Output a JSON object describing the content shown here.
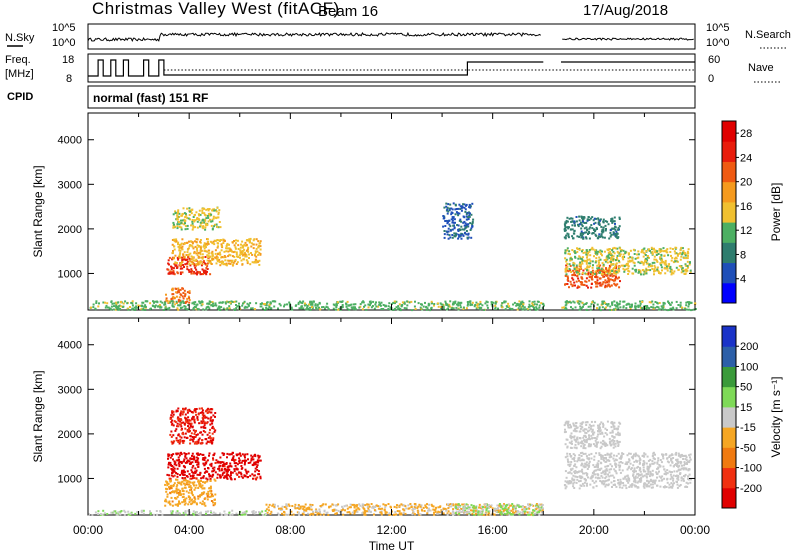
{
  "header": {
    "station": "Christmas Valley West (fitACF)",
    "beam": "Beam 16",
    "date": "17/Aug/2018"
  },
  "info_panels": {
    "nsky_label": "N.Sky",
    "nsky_ticks": [
      "10^5",
      "10^0"
    ],
    "nsearch_label": "N.Search",
    "nsearch_ticks": [
      "10^5",
      "10^0"
    ],
    "freq_label_line1": "Freq.",
    "freq_label_line2": "[MHz]",
    "freq_ticks": [
      "18",
      "8"
    ],
    "nave_label": "Nave",
    "nave_ticks": [
      "60",
      "0"
    ],
    "cpid_label": "CPID",
    "cpid_value": "normal (fast) 151 RF"
  },
  "colors": {
    "power_scale": [
      "#0000ff",
      "#1f4fb8",
      "#2e7d6e",
      "#4caf62",
      "#f0c030",
      "#f59a1e",
      "#ef5a12",
      "#e81c0c",
      "#e00000"
    ],
    "velocity_scale": [
      "#e00000",
      "#f03010",
      "#f07a10",
      "#f5a623",
      "#c9c9c9",
      "#7ed957",
      "#3a9a3a",
      "#2c5fa8",
      "#1a33c8"
    ],
    "ground_scatter": "#c8c8c8"
  },
  "chart_data": [
    {
      "type": "heatmap",
      "name": "power-panel",
      "xlabel": "",
      "ylabel": "Slant Range [km]",
      "x_range_hours": [
        0,
        24
      ],
      "ylim": [
        180,
        4600
      ],
      "y_ticks": [
        1000,
        2000,
        3000,
        4000
      ],
      "colorbar": {
        "label": "Power [dB]",
        "ticks": [
          4,
          8,
          12,
          16,
          20,
          24,
          28
        ],
        "range": [
          0,
          30
        ]
      },
      "regions": [
        {
          "t0": 3.1,
          "t1": 4.8,
          "r0": 1000,
          "r1": 1400,
          "value": 24
        },
        {
          "t0": 3.3,
          "t1": 6.8,
          "r0": 1200,
          "r1": 1800,
          "value": 16
        },
        {
          "t0": 3.3,
          "t1": 5.2,
          "r0": 2000,
          "r1": 2500,
          "value": 14
        },
        {
          "t0": 3.0,
          "t1": 4.0,
          "r0": 350,
          "r1": 700,
          "value": 20
        },
        {
          "t0": 18.8,
          "t1": 21.0,
          "r0": 700,
          "r1": 1200,
          "value": 22
        },
        {
          "t0": 18.8,
          "t1": 23.8,
          "r0": 1000,
          "r1": 1600,
          "value": 14
        },
        {
          "t0": 18.8,
          "t1": 21.0,
          "r0": 1800,
          "r1": 2300,
          "value": 8
        },
        {
          "t0": 0.0,
          "t1": 18.0,
          "r0": 200,
          "r1": 400,
          "value": 12
        },
        {
          "t0": 18.7,
          "t1": 24.0,
          "r0": 200,
          "r1": 400,
          "value": 12
        },
        {
          "t0": 14.0,
          "t1": 15.2,
          "r0": 1800,
          "r1": 2600,
          "value": 6
        }
      ]
    },
    {
      "type": "heatmap",
      "name": "velocity-panel",
      "xlabel": "Time UT",
      "ylabel": "Slant Range [km]",
      "x_range_hours": [
        0,
        24
      ],
      "x_ticks": [
        "00:00",
        "04:00",
        "08:00",
        "12:00",
        "16:00",
        "20:00",
        "00:00"
      ],
      "ylim": [
        180,
        4600
      ],
      "y_ticks": [
        1000,
        2000,
        3000,
        4000
      ],
      "colorbar": {
        "label": "Velocity [m s⁻¹]",
        "ticks": [
          200,
          100,
          50,
          15,
          -15,
          -50,
          -100,
          -200
        ],
        "range": [
          -250,
          250
        ]
      },
      "regions": [
        {
          "t0": 3.1,
          "t1": 6.8,
          "r0": 1000,
          "r1": 1600,
          "value": -220
        },
        {
          "t0": 3.0,
          "t1": 5.0,
          "r0": 400,
          "r1": 1000,
          "value": -60
        },
        {
          "t0": 3.2,
          "t1": 5.0,
          "r0": 1800,
          "r1": 2600,
          "value": -200
        },
        {
          "t0": 18.8,
          "t1": 23.8,
          "r0": 800,
          "r1": 1600,
          "value": 0
        },
        {
          "t0": 18.8,
          "t1": 21.0,
          "r0": 1700,
          "r1": 2300,
          "value": 0
        },
        {
          "t0": 7.0,
          "t1": 18.0,
          "r0": 200,
          "r1": 450,
          "value": -40
        },
        {
          "t0": 14.5,
          "t1": 18.0,
          "r0": 200,
          "r1": 450,
          "value": 30
        },
        {
          "t0": 0.0,
          "t1": 7.0,
          "r0": 200,
          "r1": 300,
          "value": 20
        }
      ]
    }
  ]
}
